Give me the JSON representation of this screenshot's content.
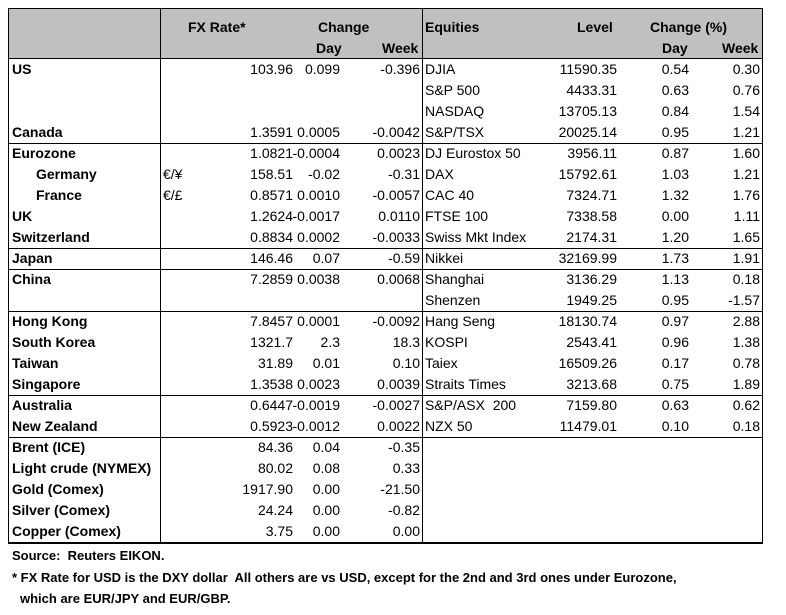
{
  "headers": {
    "fx_rate": "FX Rate*",
    "change": "Change",
    "day": "Day",
    "week": "Week",
    "equities": "Equities",
    "level": "Level",
    "change_pct": "Change (%)",
    "eq_day": "Day",
    "eq_week": "Week"
  },
  "rows": [
    {
      "label": "US",
      "fx": "103.96",
      "day": "0.099",
      "week": "-0.396",
      "equity": "DJIA",
      "level": "11590.35",
      "eq_day": "0.54",
      "eq_week": "0.30"
    },
    {
      "equity": "S&P 500",
      "level": "4433.31",
      "eq_day": "0.63",
      "eq_week": "0.76"
    },
    {
      "equity": "NASDAQ",
      "level": "13705.13",
      "eq_day": "0.84",
      "eq_week": "1.54"
    },
    {
      "label": "Canada",
      "fx": "1.3591",
      "day": "0.0005",
      "week": "-0.0042",
      "equity": "S&P/TSX",
      "level": "20025.14",
      "eq_day": "0.95",
      "eq_week": "1.21"
    },
    {
      "label": "Eurozone",
      "fx": "1.0821",
      "day": "-0.0004",
      "week": "0.0023",
      "equity": "DJ Eurostox 50",
      "level": "3956.11",
      "eq_day": "0.87",
      "eq_week": "1.60"
    },
    {
      "label": "Germany",
      "pair": "€/¥",
      "fx": "158.51",
      "day": "-0.02",
      "week": "-0.31",
      "equity": "DAX",
      "level": "15792.61",
      "eq_day": "1.03",
      "eq_week": "1.21"
    },
    {
      "label": "France",
      "pair": "€/£",
      "fx": "0.8571",
      "day": "0.0010",
      "week": "-0.0057",
      "equity": "CAC 40",
      "level": "7324.71",
      "eq_day": "1.32",
      "eq_week": "1.76"
    },
    {
      "label": "UK",
      "fx": "1.2624",
      "day": "-0.0017",
      "week": "0.0110",
      "equity": "FTSE 100",
      "level": "7338.58",
      "eq_day": "0.00",
      "eq_week": "1.11"
    },
    {
      "label": "Switzerland",
      "fx": "0.8834",
      "day": "0.0002",
      "week": "-0.0033",
      "equity": "Swiss Mkt Index",
      "level": "2174.31",
      "eq_day": "1.20",
      "eq_week": "1.65"
    },
    {
      "label": "Japan",
      "fx": "146.46",
      "day": "0.07",
      "week": "-0.59",
      "equity": "Nikkei",
      "level": "32169.99",
      "eq_day": "1.73",
      "eq_week": "1.91"
    },
    {
      "label": "China",
      "fx": "7.2859",
      "day": "0.0038",
      "week": "0.0068",
      "equity": "Shanghai",
      "level": "3136.29",
      "eq_day": "1.13",
      "eq_week": "0.18"
    },
    {
      "equity": "Shenzen",
      "level": "1949.25",
      "eq_day": "0.95",
      "eq_week": "-1.57"
    },
    {
      "label": "Hong Kong",
      "fx": "7.8457",
      "day": "0.0001",
      "week": "-0.0092",
      "equity": "Hang Seng",
      "level": "18130.74",
      "eq_day": "0.97",
      "eq_week": "2.88"
    },
    {
      "label": "South Korea",
      "fx": "1321.7",
      "day": "2.3",
      "week": "18.3",
      "equity": "KOSPI",
      "level": "2543.41",
      "eq_day": "0.96",
      "eq_week": "1.38"
    },
    {
      "label": "Taiwan",
      "fx": "31.89",
      "day": "0.01",
      "week": "0.10",
      "equity": "Taiex",
      "level": "16509.26",
      "eq_day": "0.17",
      "eq_week": "0.78"
    },
    {
      "label": "Singapore",
      "fx": "1.3538",
      "day": "0.0023",
      "week": "0.0039",
      "equity": "Straits Times",
      "level": "3213.68",
      "eq_day": "0.75",
      "eq_week": "1.89"
    },
    {
      "label": "Australia",
      "fx": "0.6447",
      "day": "-0.0019",
      "week": "-0.0027",
      "equity": "S&P/ASX  200",
      "level": "7159.80",
      "eq_day": "0.63",
      "eq_week": "0.62"
    },
    {
      "label": "New Zealand",
      "fx": "0.5923",
      "day": "-0.0012",
      "week": "0.0022",
      "equity": "NZX 50",
      "level": "11479.01",
      "eq_day": "0.10",
      "eq_week": "0.18"
    },
    {
      "label": "Brent (ICE)",
      "fx": "84.36",
      "day": "0.04",
      "week": "-0.35"
    },
    {
      "label": "Light crude (NYMEX)",
      "fx": "80.02",
      "day": "0.08",
      "week": "0.33"
    },
    {
      "label": "Gold (Comex)",
      "fx": "1917.90",
      "day": "0.00",
      "week": "-21.50"
    },
    {
      "label": "Silver (Comex)",
      "fx": "24.24",
      "day": "0.00",
      "week": "-0.82"
    },
    {
      "label": "Copper (Comex)",
      "fx": "3.75",
      "day": "0.00",
      "week": "0.00"
    }
  ],
  "footer": {
    "source": "Source:  Reuters EIKON.",
    "note_1": "* FX Rate for USD is the DXY dollar  All others are vs USD, except for the 2nd and 3rd ones under Eurozone,",
    "note_2": "which are EUR/JPY and EUR/GBP."
  }
}
